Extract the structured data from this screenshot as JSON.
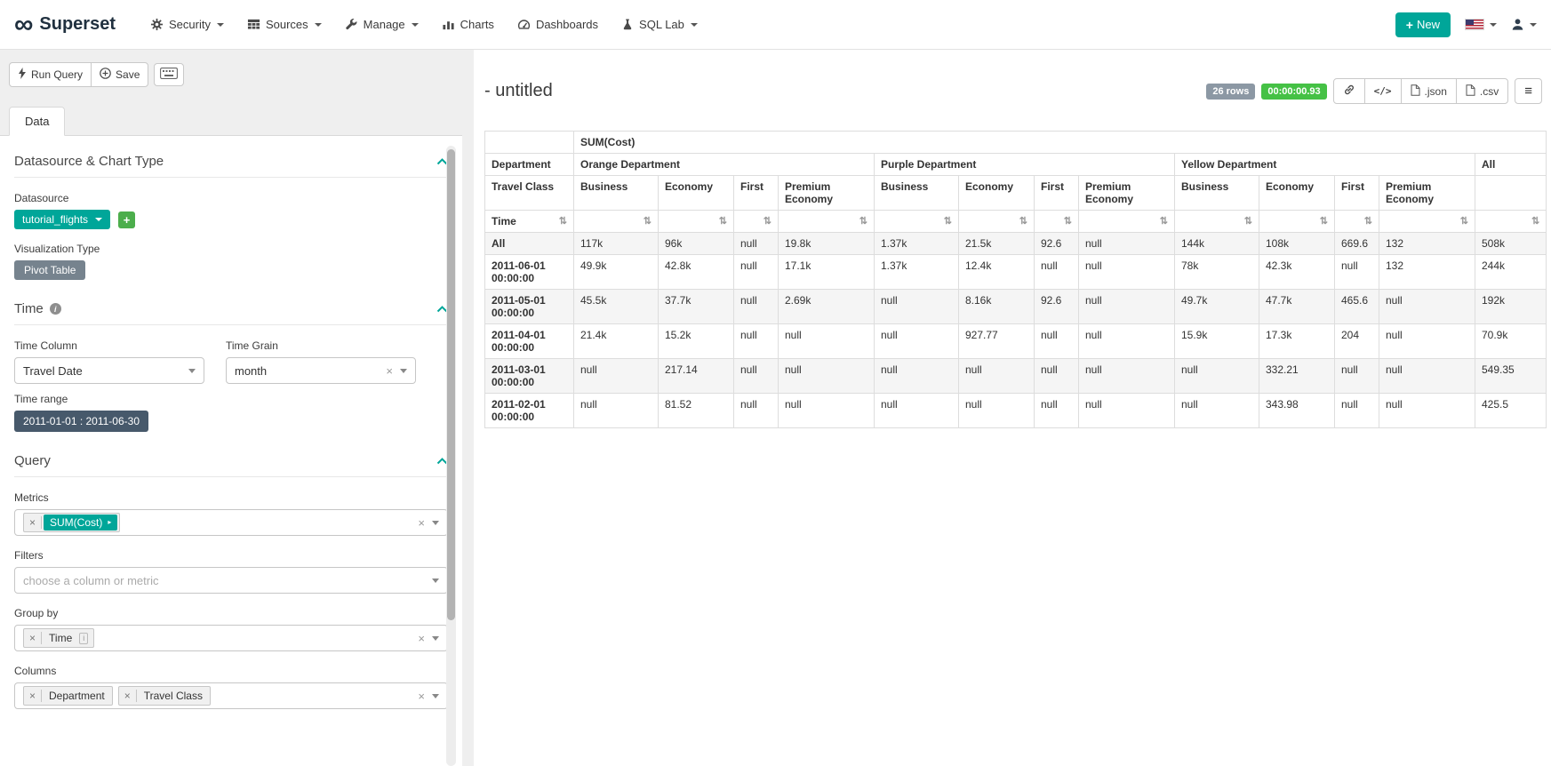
{
  "colors": {
    "primary_teal": "#00a699",
    "success_badge_green": "#45c145",
    "row_count_badge_gray": "#8c98a4",
    "viz_chip_slate": "#76838e",
    "time_range_chip_slate": "#47596b",
    "add_datasource_green": "#4cae4c"
  },
  "icons": {
    "plus": "+",
    "sort": "⇅",
    "clear": "×",
    "hamburger": "≡",
    "caret_right": "▸",
    "code": "</>",
    "infinity_logo": "∞",
    "info": "i"
  },
  "navbar": {
    "brand": "Superset",
    "new_label": "New",
    "items": [
      {
        "label": "Security",
        "icon": "gears-icon",
        "has_dropdown": true
      },
      {
        "label": "Sources",
        "icon": "table-grid-icon",
        "has_dropdown": true
      },
      {
        "label": "Manage",
        "icon": "wrench-icon",
        "has_dropdown": true
      },
      {
        "label": "Charts",
        "icon": "bar-chart-icon",
        "has_dropdown": false
      },
      {
        "label": "Dashboards",
        "icon": "dashboard-icon",
        "has_dropdown": false
      },
      {
        "label": "SQL Lab",
        "icon": "flask-icon",
        "has_dropdown": true
      }
    ]
  },
  "toolbar": {
    "run_query_label": "Run Query",
    "save_label": "Save"
  },
  "panel": {
    "tab_label": "Data",
    "datasource": {
      "title": "Datasource & Chart Type",
      "datasource_label": "Datasource",
      "datasource_value": "tutorial_flights",
      "viz_type_label": "Visualization Type",
      "viz_type_value": "Pivot Table"
    },
    "time": {
      "title": "Time",
      "time_column_label": "Time Column",
      "time_column_value": "Travel Date",
      "time_grain_label": "Time Grain",
      "time_grain_value": "month",
      "time_range_label": "Time range",
      "time_range_value": "2011-01-01 : 2011-06-30"
    },
    "query": {
      "title": "Query",
      "metrics_label": "Metrics",
      "metrics": [
        "SUM(Cost)"
      ],
      "filters_label": "Filters",
      "filters_placeholder": "choose a column or metric",
      "groupby_label": "Group by",
      "groupby": [
        "Time"
      ],
      "columns_label": "Columns",
      "columns": [
        "Department",
        "Travel Class"
      ]
    }
  },
  "main": {
    "title": "- untitled",
    "row_count": "26 rows",
    "query_duration": "00:00:00.93",
    "export_json_label": ".json",
    "export_csv_label": ".csv"
  },
  "chart_data": {
    "type": "table",
    "metric": "SUM(Cost)",
    "row_dimension": "Time",
    "column_dimensions": [
      "Department",
      "Travel Class"
    ],
    "all_column": "All",
    "column_groups": [
      {
        "department": "Orange Department",
        "classes": [
          "Business",
          "Economy",
          "First",
          "Premium Economy"
        ]
      },
      {
        "department": "Purple Department",
        "classes": [
          "Business",
          "Economy",
          "First",
          "Premium Economy"
        ]
      },
      {
        "department": "Yellow Department",
        "classes": [
          "Business",
          "Economy",
          "First",
          "Premium Economy"
        ]
      }
    ],
    "rows": [
      {
        "time": "All",
        "values": [
          "117k",
          "96k",
          "null",
          "19.8k",
          "1.37k",
          "21.5k",
          "92.6",
          "null",
          "144k",
          "108k",
          "669.6",
          "132",
          "508k"
        ]
      },
      {
        "time": "2011-06-01 00:00:00",
        "values": [
          "49.9k",
          "42.8k",
          "null",
          "17.1k",
          "1.37k",
          "12.4k",
          "null",
          "null",
          "78k",
          "42.3k",
          "null",
          "132",
          "244k"
        ]
      },
      {
        "time": "2011-05-01 00:00:00",
        "values": [
          "45.5k",
          "37.7k",
          "null",
          "2.69k",
          "null",
          "8.16k",
          "92.6",
          "null",
          "49.7k",
          "47.7k",
          "465.6",
          "null",
          "192k"
        ]
      },
      {
        "time": "2011-04-01 00:00:00",
        "values": [
          "21.4k",
          "15.2k",
          "null",
          "null",
          "null",
          "927.77",
          "null",
          "null",
          "15.9k",
          "17.3k",
          "204",
          "null",
          "70.9k"
        ]
      },
      {
        "time": "2011-03-01 00:00:00",
        "values": [
          "null",
          "217.14",
          "null",
          "null",
          "null",
          "null",
          "null",
          "null",
          "null",
          "332.21",
          "null",
          "null",
          "549.35"
        ]
      },
      {
        "time": "2011-02-01 00:00:00",
        "values": [
          "null",
          "81.52",
          "null",
          "null",
          "null",
          "null",
          "null",
          "null",
          "null",
          "343.98",
          "null",
          "null",
          "425.5"
        ]
      }
    ]
  }
}
